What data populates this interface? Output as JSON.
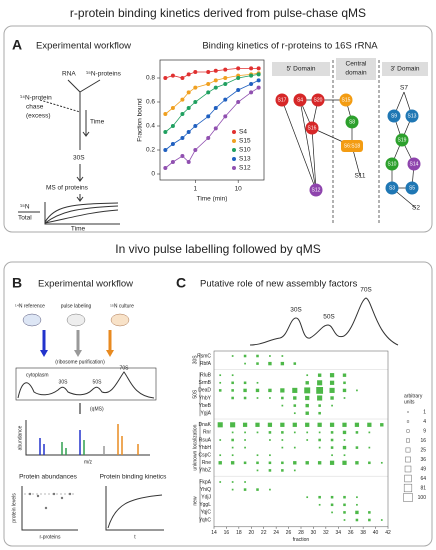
{
  "figure_title": "r-protein binding kinetics derived from pulse-chase qMS",
  "panel_a": {
    "label": "A",
    "workflow_title": "Experimental workflow",
    "workflow": {
      "rna": "RNA",
      "proteins": "¹⁵N-proteins",
      "chase1": "¹⁴N-protein",
      "chase2": "chase",
      "chase3": "(excess)",
      "time": "Time",
      "particle": "30S",
      "ms": "MS of proteins",
      "ratio_top": "¹⁵N",
      "ratio_bottom": "Total",
      "graph_x": "Time"
    },
    "map": {
      "header_5": "5' Domain",
      "header_c1": "Central",
      "header_c2": "domain",
      "header_3": "3' Domain",
      "nodes": [
        {
          "label": "S17",
          "color": "#d62728"
        },
        {
          "label": "S4",
          "color": "#d62728"
        },
        {
          "label": "S20",
          "color": "#d62728"
        },
        {
          "label": "S16",
          "color": "#d62728"
        },
        {
          "label": "S12",
          "color": "#8e44ad"
        },
        {
          "label": "S15",
          "color": "#f39c12"
        },
        {
          "label": "S8",
          "color": "#2ca02c"
        },
        {
          "label": "S6:S18",
          "color": "#f39c12"
        },
        {
          "label": "S9",
          "color": "#1f77b4"
        },
        {
          "label": "S13",
          "color": "#1f77b4"
        },
        {
          "label": "S19",
          "color": "#2ca02c"
        },
        {
          "label": "S10",
          "color": "#2ca02c"
        },
        {
          "label": "S14",
          "color": "#8e44ad"
        },
        {
          "label": "S3",
          "color": "#1f77b4"
        },
        {
          "label": "S5",
          "color": "#1f77b4"
        }
      ],
      "text_nodes": [
        "S7",
        "S11",
        "S2"
      ]
    }
  },
  "chart_data": {
    "type": "scatter",
    "title": "Binding kinetics of r-proteins to 16S rRNA",
    "x_label": "Time (min)",
    "y_label": "Fraction bound",
    "log_x": true,
    "x": [
      0.2,
      0.3,
      0.5,
      0.7,
      1,
      2,
      3,
      5,
      10,
      20,
      30
    ],
    "xlim": [
      0.15,
      40
    ],
    "xticks": [
      1,
      10
    ],
    "ylim": [
      -0.05,
      0.95
    ],
    "yticks": [
      0,
      0.2,
      0.4,
      0.6,
      0.8
    ],
    "legend": "lower right",
    "series": [
      {
        "name": "S4",
        "color": "#e03030",
        "values": [
          0.8,
          0.82,
          0.8,
          0.83,
          0.85,
          0.85,
          0.86,
          0.87,
          0.88,
          0.88,
          0.88
        ]
      },
      {
        "name": "S15",
        "color": "#f0a020",
        "values": [
          0.5,
          0.55,
          0.62,
          0.68,
          0.72,
          0.75,
          0.78,
          0.8,
          0.82,
          0.83,
          0.84
        ]
      },
      {
        "name": "S10",
        "color": "#20a060",
        "values": [
          0.35,
          0.4,
          0.5,
          0.55,
          0.6,
          0.68,
          0.72,
          0.75,
          0.8,
          0.82,
          0.83
        ]
      },
      {
        "name": "S13",
        "color": "#2060c0",
        "values": [
          0.2,
          0.25,
          0.3,
          0.35,
          0.4,
          0.48,
          0.55,
          0.62,
          0.7,
          0.75,
          0.78
        ]
      },
      {
        "name": "S12",
        "color": "#9050b0",
        "values": [
          0.05,
          0.1,
          0.15,
          0.1,
          0.2,
          0.3,
          0.38,
          0.48,
          0.6,
          0.68,
          0.72
        ]
      }
    ]
  },
  "section2_title": "In vivo pulse labelling followed by qMS",
  "panel_b": {
    "label": "B",
    "title": "Experimental workflow",
    "labels": {
      "reference": "¹⁴N reference",
      "pulse": "pulse labeling",
      "culture": "¹⁵N culture",
      "purification": "(ribosome purification)",
      "cytoplasm": "cytoplasm",
      "p30": "30S",
      "p50": "50S",
      "p70": "70S",
      "qms": "(qMS)",
      "abundance": "abundance",
      "mz": "m/z",
      "abund_title": "Protein abundances",
      "kin_title": "Protein binding kinetics",
      "levels": "protein levels",
      "rprot": "r-proteins",
      "t": "t"
    }
  },
  "panel_c": {
    "label": "C",
    "title": "Putative role of new assembly factors",
    "peaks": {
      "p30": "30S",
      "p50": "50S",
      "p70": "70S"
    },
    "x_label": "fraction",
    "xlim": [
      14,
      42
    ],
    "xticks": [
      14,
      16,
      18,
      20,
      22,
      24,
      26,
      28,
      30,
      32,
      34,
      36,
      38,
      40,
      42
    ],
    "fractions": [
      15,
      17,
      19,
      21,
      23,
      25,
      27,
      29,
      31,
      33,
      35,
      37,
      39,
      41
    ],
    "color": "#4db848",
    "legend_title1": "arbitrary",
    "legend_title2": "units",
    "legend_sizes": [
      1,
      4,
      9,
      16,
      25,
      36,
      49,
      64,
      81,
      100
    ],
    "groups": [
      {
        "label": "30S",
        "proteins": [
          {
            "name": "RsmC",
            "values": [
              null,
              4,
              9,
              9,
              4,
              4,
              null,
              null,
              null,
              null,
              null,
              null,
              null,
              null
            ]
          },
          {
            "name": "RbfA",
            "values": [
              null,
              null,
              4,
              9,
              16,
              16,
              9,
              null,
              null,
              null,
              null,
              null,
              null,
              null
            ]
          }
        ]
      },
      {
        "label": "50S",
        "proteins": [
          {
            "name": "RluB",
            "values": [
              4,
              4,
              null,
              null,
              null,
              null,
              null,
              4,
              16,
              25,
              16,
              null,
              null,
              null
            ]
          },
          {
            "name": "SrmB",
            "values": [
              4,
              9,
              9,
              4,
              null,
              null,
              null,
              16,
              36,
              25,
              9,
              null,
              null,
              null
            ]
          },
          {
            "name": "DeaD",
            "values": [
              9,
              9,
              16,
              16,
              16,
              25,
              36,
              49,
              64,
              36,
              16,
              4,
              null,
              null
            ]
          },
          {
            "name": "YhbY",
            "values": [
              null,
              9,
              9,
              4,
              4,
              9,
              16,
              25,
              36,
              16,
              4,
              null,
              null,
              null
            ]
          },
          {
            "name": "YbeB",
            "values": [
              null,
              null,
              null,
              null,
              null,
              4,
              9,
              16,
              9,
              4,
              null,
              null,
              null,
              null
            ]
          },
          {
            "name": "YgjA",
            "values": [
              null,
              null,
              null,
              null,
              null,
              null,
              4,
              16,
              9,
              null,
              null,
              null,
              null,
              null
            ]
          }
        ]
      },
      {
        "label": "unknown localization",
        "proteins": [
          {
            "name": "DnaK",
            "values": [
              36,
              36,
              25,
              25,
              25,
              25,
              25,
              25,
              25,
              25,
              25,
              25,
              25,
              16
            ]
          },
          {
            "name": "Rnr",
            "values": [
              null,
              4,
              4,
              4,
              9,
              9,
              4,
              4,
              4,
              9,
              16,
              9,
              4,
              null
            ]
          },
          {
            "name": "RsuA",
            "values": [
              4,
              9,
              4,
              null,
              4,
              4,
              null,
              4,
              9,
              9,
              4,
              null,
              null,
              null
            ]
          },
          {
            "name": "YhbH",
            "values": [
              null,
              4,
              4,
              null,
              null,
              4,
              4,
              null,
              4,
              9,
              16,
              9,
              4,
              null
            ]
          },
          {
            "name": "CspC",
            "values": [
              4,
              4,
              null,
              4,
              4,
              null,
              null,
              null,
              null,
              4,
              4,
              null,
              null,
              null
            ]
          },
          {
            "name": "Rne",
            "values": [
              16,
              16,
              9,
              9,
              9,
              9,
              16,
              16,
              16,
              25,
              25,
              16,
              9,
              4
            ]
          },
          {
            "name": "YhbZ",
            "values": [
              null,
              null,
              null,
              4,
              9,
              9,
              4,
              null,
              null,
              null,
              null,
              null,
              null,
              null
            ]
          }
        ]
      },
      {
        "label": "new",
        "proteins": [
          {
            "name": "FkpA",
            "values": [
              4,
              4,
              4,
              null,
              null,
              null,
              null,
              null,
              null,
              null,
              null,
              null,
              null,
              null
            ]
          },
          {
            "name": "YhiQ",
            "values": [
              null,
              4,
              9,
              9,
              4,
              null,
              null,
              null,
              null,
              null,
              null,
              null,
              null,
              null
            ]
          },
          {
            "name": "YdjJ",
            "values": [
              null,
              null,
              null,
              null,
              null,
              null,
              null,
              4,
              9,
              9,
              9,
              4,
              null,
              null
            ]
          },
          {
            "name": "YggL",
            "values": [
              null,
              null,
              null,
              null,
              null,
              null,
              null,
              null,
              4,
              9,
              9,
              4,
              null,
              null
            ]
          },
          {
            "name": "YqjC",
            "values": [
              null,
              null,
              null,
              null,
              null,
              null,
              null,
              null,
              null,
              4,
              9,
              16,
              9,
              null
            ]
          },
          {
            "name": "YqhC",
            "values": [
              null,
              null,
              null,
              null,
              null,
              null,
              null,
              null,
              null,
              null,
              4,
              9,
              9,
              4
            ]
          }
        ]
      }
    ]
  }
}
